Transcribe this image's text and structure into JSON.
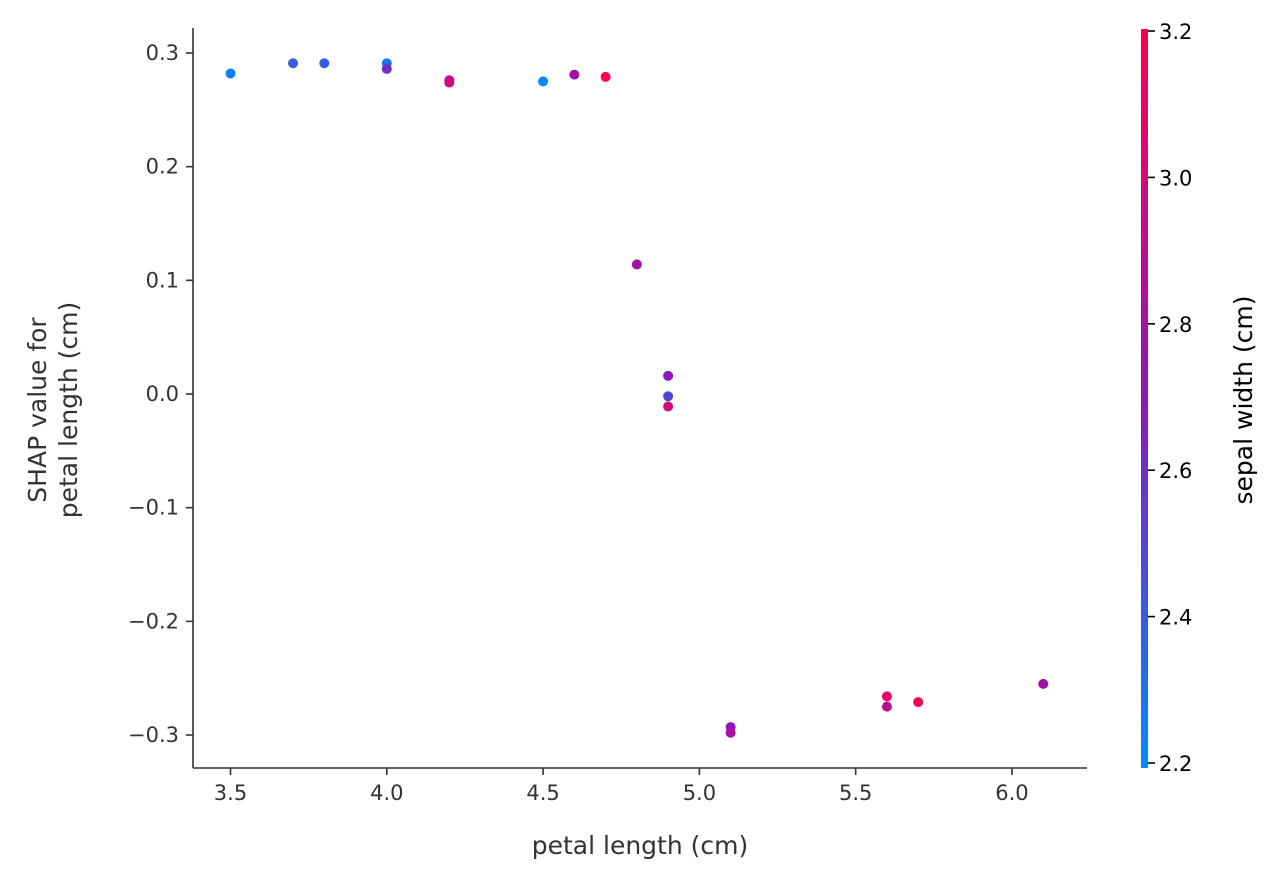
{
  "chart_data": {
    "type": "scatter",
    "xlabel": "petal length (cm)",
    "ylabel_lines": [
      "SHAP value for",
      "petal length (cm)"
    ],
    "xlim": [
      3.38,
      6.24
    ],
    "ylim": [
      -0.329,
      0.322
    ],
    "xticks": [
      "3.5",
      "4.0",
      "4.5",
      "5.0",
      "5.5",
      "6.0"
    ],
    "yticks": [
      "0.3",
      "0.2",
      "0.1",
      "0.0",
      "−0.1",
      "−0.2",
      "−0.3"
    ],
    "colorbar": {
      "label": "sepal width (cm)",
      "range": [
        2.2,
        3.2
      ],
      "ticks": [
        "2.2",
        "2.4",
        "2.6",
        "2.8",
        "3.0",
        "3.2"
      ],
      "low_color": "#008bfb",
      "mid_color": "#8d17ba",
      "high_color": "#ff0052"
    },
    "points": [
      {
        "x": 3.5,
        "y": 0.282,
        "c": 2.25
      },
      {
        "x": 3.7,
        "y": 0.291,
        "c": 2.4
      },
      {
        "x": 3.8,
        "y": 0.291,
        "c": 2.4
      },
      {
        "x": 4.0,
        "y": 0.291,
        "c": 2.3
      },
      {
        "x": 4.0,
        "y": 0.286,
        "c": 2.6
      },
      {
        "x": 4.2,
        "y": 0.276,
        "c": 2.9
      },
      {
        "x": 4.2,
        "y": 0.274,
        "c": 3.0
      },
      {
        "x": 4.5,
        "y": 0.275,
        "c": 2.2
      },
      {
        "x": 4.6,
        "y": 0.281,
        "c": 2.8
      },
      {
        "x": 4.7,
        "y": 0.279,
        "c": 3.2
      },
      {
        "x": 4.8,
        "y": 0.114,
        "c": 2.8
      },
      {
        "x": 4.9,
        "y": 0.016,
        "c": 2.7
      },
      {
        "x": 4.9,
        "y": -0.002,
        "c": 2.5
      },
      {
        "x": 4.9,
        "y": -0.011,
        "c": 3.0
      },
      {
        "x": 5.1,
        "y": -0.293,
        "c": 2.7
      },
      {
        "x": 5.1,
        "y": -0.298,
        "c": 2.8
      },
      {
        "x": 5.6,
        "y": -0.266,
        "c": 3.1
      },
      {
        "x": 5.6,
        "y": -0.275,
        "c": 2.9
      },
      {
        "x": 5.7,
        "y": -0.271,
        "c": 3.2
      },
      {
        "x": 6.1,
        "y": -0.255,
        "c": 2.8
      }
    ]
  }
}
